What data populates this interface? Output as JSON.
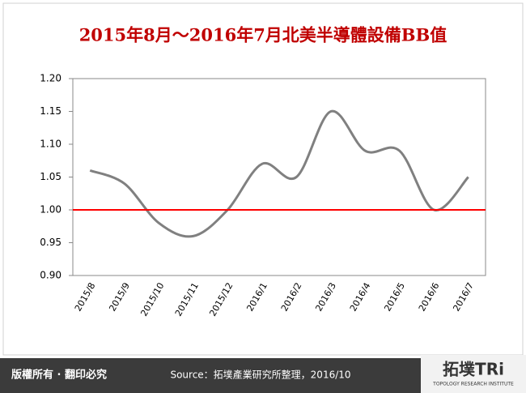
{
  "chart_data": {
    "type": "line",
    "title": "2015年8月～2016年7月北美半導體設備BB值",
    "categories": [
      "2015/8",
      "2015/9",
      "2015/10",
      "2015/11",
      "2015/12",
      "2016/1",
      "2016/2",
      "2016/3",
      "2016/4",
      "2016/5",
      "2016/6",
      "2016/7"
    ],
    "series": [
      {
        "color": "#808080",
        "values": [
          1.06,
          1.04,
          0.98,
          0.96,
          1.0,
          1.07,
          1.05,
          1.15,
          1.09,
          1.09,
          1.0,
          1.05
        ]
      }
    ],
    "ylim": [
      0.9,
      1.2
    ],
    "yticks": [
      {
        "value": 0.9,
        "label": "0.90"
      },
      {
        "value": 0.95,
        "label": "0.95"
      },
      {
        "value": 1.0,
        "label": "1.00"
      },
      {
        "value": 1.05,
        "label": "1.05"
      },
      {
        "value": 1.1,
        "label": "1.10"
      },
      {
        "value": 1.15,
        "label": "1.15"
      },
      {
        "value": 1.2,
        "label": "1.20"
      }
    ],
    "reference_line": {
      "value": 1.0,
      "color": "#ff0000"
    }
  },
  "footer": {
    "copyright": "版權所有 · 翻印必究",
    "source": "Source：拓墣產業研究所整理，2016/10",
    "logo": "拓墣TRi",
    "logo_sub": "TOPOLOGY RESEARCH INSTITUTE"
  }
}
